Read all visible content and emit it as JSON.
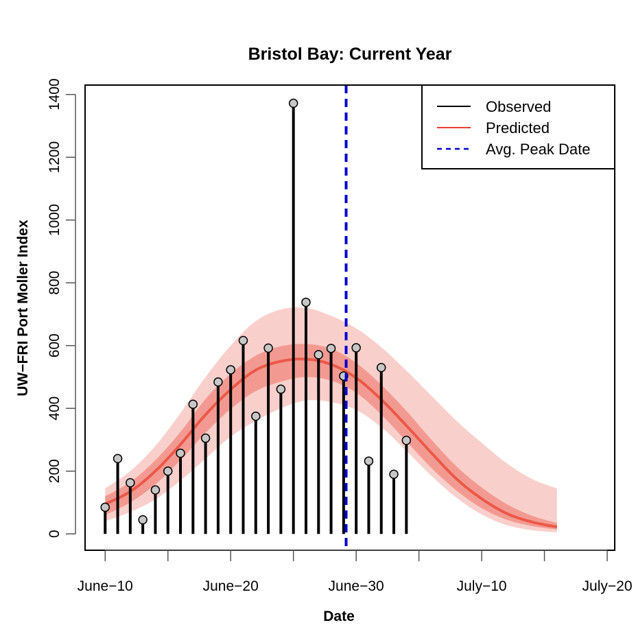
{
  "chart_data": {
    "type": "line",
    "title": "Bristol Bay: Current Year",
    "xlabel": "Date",
    "ylabel": "UW−FRI Port Moller Index",
    "x_axis": {
      "range_days": [
        -1.6,
        40.6
      ],
      "ticks": [
        {
          "day": 0,
          "label": "June−10"
        },
        {
          "day": 5,
          "label": ""
        },
        {
          "day": 10,
          "label": "June−20"
        },
        {
          "day": 15,
          "label": ""
        },
        {
          "day": 20,
          "label": "June−30"
        },
        {
          "day": 25,
          "label": ""
        },
        {
          "day": 30,
          "label": "July−10"
        },
        {
          "day": 35,
          "label": ""
        },
        {
          "day": 40,
          "label": "July−20"
        }
      ]
    },
    "y_axis": {
      "range": [
        -52,
        1430
      ],
      "ticks": [
        0,
        200,
        400,
        600,
        800,
        1000,
        1200,
        1400
      ]
    },
    "legend": {
      "position": "top-right",
      "entries": [
        {
          "label": "Observed",
          "color": "#000000",
          "style": "solid"
        },
        {
          "label": "Predicted",
          "color": "#e8412f",
          "style": "solid"
        },
        {
          "label": "Avg. Peak Date",
          "color": "#0000cc",
          "style": "dashed"
        }
      ]
    },
    "observed": {
      "name": "Observed",
      "days": [
        0,
        1,
        2,
        3,
        4,
        5,
        6,
        7,
        8,
        9,
        10,
        11,
        12,
        13,
        14,
        15,
        16,
        17,
        18,
        19,
        20,
        21,
        22,
        23,
        24
      ],
      "values": [
        85,
        240,
        163,
        45,
        140,
        200,
        257,
        413,
        305,
        484,
        523,
        616,
        375,
        592,
        461,
        1372,
        738,
        571,
        591,
        503,
        593,
        232,
        530,
        190,
        298
      ]
    },
    "predicted": {
      "name": "Predicted",
      "peak_day": 16,
      "days": [
        0,
        2,
        4,
        6,
        8,
        10,
        12,
        14,
        16,
        18,
        20,
        22,
        24,
        26,
        28,
        30,
        32,
        34,
        36
      ],
      "mean": [
        95,
        135,
        200,
        285,
        380,
        460,
        522,
        550,
        557,
        540,
        497,
        428,
        345,
        258,
        175,
        112,
        65,
        38,
        22
      ],
      "inner_lower": [
        60,
        100,
        158,
        235,
        322,
        398,
        455,
        485,
        500,
        488,
        450,
        380,
        295,
        210,
        138,
        82,
        45,
        25,
        14
      ],
      "inner_upper": [
        120,
        165,
        235,
        325,
        430,
        510,
        568,
        598,
        605,
        590,
        545,
        475,
        392,
        300,
        215,
        148,
        95,
        58,
        35
      ],
      "outer_lower": [
        40,
        70,
        110,
        170,
        240,
        310,
        360,
        400,
        425,
        420,
        395,
        340,
        265,
        185,
        115,
        62,
        28,
        12,
        5
      ],
      "outer_upper": [
        145,
        200,
        280,
        385,
        500,
        600,
        678,
        715,
        720,
        695,
        655,
        595,
        520,
        440,
        360,
        290,
        225,
        175,
        145
      ]
    },
    "avg_peak_date_day": 19.2,
    "grid": false,
    "colors": {
      "observed_line": "#000000",
      "observed_point_fill": "#c7c7c7",
      "predicted_line": "#e8412f",
      "inner_band": "#f29a92",
      "outer_band": "#f9cfcb",
      "avg_peak": "#0000cc"
    }
  }
}
